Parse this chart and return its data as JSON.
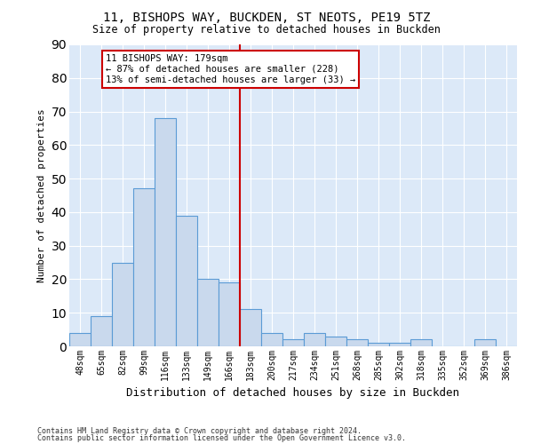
{
  "title": "11, BISHOPS WAY, BUCKDEN, ST NEOTS, PE19 5TZ",
  "subtitle": "Size of property relative to detached houses in Buckden",
  "xlabel": "Distribution of detached houses by size in Buckden",
  "ylabel": "Number of detached properties",
  "bar_labels": [
    "48sqm",
    "65sqm",
    "82sqm",
    "99sqm",
    "116sqm",
    "133sqm",
    "149sqm",
    "166sqm",
    "183sqm",
    "200sqm",
    "217sqm",
    "234sqm",
    "251sqm",
    "268sqm",
    "285sqm",
    "302sqm",
    "318sqm",
    "335sqm",
    "352sqm",
    "369sqm",
    "386sqm"
  ],
  "bar_values": [
    4,
    9,
    25,
    47,
    68,
    39,
    20,
    19,
    11,
    4,
    2,
    4,
    3,
    2,
    1,
    1,
    2,
    0,
    0,
    2,
    0
  ],
  "bar_color": "#c9d9ed",
  "bar_edgecolor": "#5b9bd5",
  "annotation_text": "11 BISHOPS WAY: 179sqm\n← 87% of detached houses are smaller (228)\n13% of semi-detached houses are larger (33) →",
  "annotation_box_color": "#ffffff",
  "annotation_box_edgecolor": "#cc0000",
  "vline_color": "#cc0000",
  "vline_x": 7.5,
  "ylim": [
    0,
    90
  ],
  "yticks": [
    0,
    10,
    20,
    30,
    40,
    50,
    60,
    70,
    80,
    90
  ],
  "background_color": "#dce9f8",
  "grid_color": "#ffffff",
  "footer_line1": "Contains HM Land Registry data © Crown copyright and database right 2024.",
  "footer_line2": "Contains public sector information licensed under the Open Government Licence v3.0."
}
